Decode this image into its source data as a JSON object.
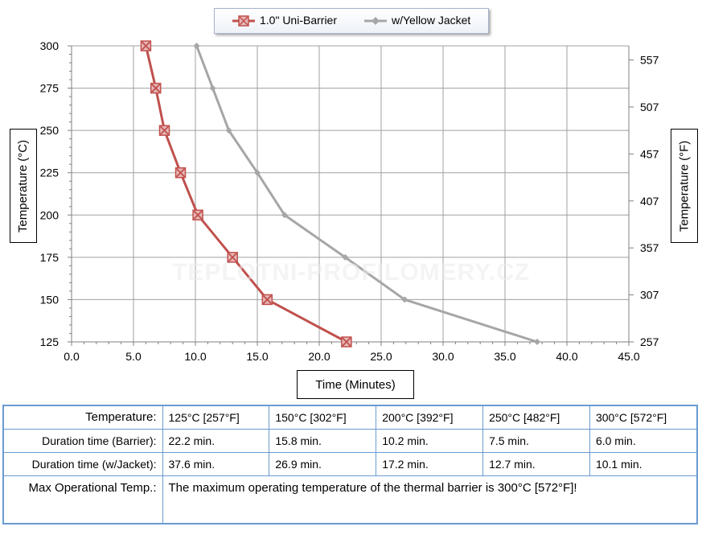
{
  "chart_data": {
    "type": "line",
    "xlabel": "Time (Minutes)",
    "ylabel": "Temperature (°C)",
    "y2label": "Temperature (°F)",
    "xlim": [
      0,
      45
    ],
    "ylim": [
      125,
      300
    ],
    "xticks": [
      "0.0",
      "5.0",
      "10.0",
      "15.0",
      "20.0",
      "25.0",
      "30.0",
      "35.0",
      "40.0",
      "45.0"
    ],
    "yticks": [
      "125",
      "150",
      "175",
      "200",
      "225",
      "250",
      "275",
      "300"
    ],
    "y2ticks": [
      "257",
      "307",
      "357",
      "407",
      "457",
      "507",
      "557"
    ],
    "grid": true,
    "legend": "top",
    "series": [
      {
        "name": "1.0\" Uni-Barrier",
        "color": "#c0504d",
        "marker": "x-square",
        "points": [
          [
            22.2,
            125
          ],
          [
            15.8,
            150
          ],
          [
            13.0,
            175
          ],
          [
            10.2,
            200
          ],
          [
            8.8,
            225
          ],
          [
            7.5,
            250
          ],
          [
            6.8,
            275
          ],
          [
            6.0,
            300
          ]
        ]
      },
      {
        "name": "w/Yellow Jacket",
        "color": "#a6a6a6",
        "marker": "diamond",
        "points": [
          [
            37.6,
            125
          ],
          [
            26.9,
            150
          ],
          [
            22.1,
            175
          ],
          [
            17.2,
            200
          ],
          [
            15.0,
            225
          ],
          [
            12.7,
            250
          ],
          [
            11.4,
            275
          ],
          [
            10.1,
            300
          ]
        ]
      }
    ]
  },
  "watermark": "TEPLOTNI-PROFILOMERY.CZ",
  "table": {
    "temp_label": "Temperature:",
    "temps": [
      "125°C [257°F]",
      "150°C [302°F]",
      "200°C [392°F]",
      "250°C [482°F]",
      "300°C [572°F]"
    ],
    "barrier_label": "Duration time (Barrier):",
    "barrier": [
      "22.2 min.",
      "15.8 min.",
      "10.2 min.",
      "7.5 min.",
      "6.0 min."
    ],
    "jacket_label": "Duration time (w/Jacket):",
    "jacket": [
      "37.6 min.",
      "26.9 min.",
      "17.2 min.",
      "12.7 min.",
      "10.1 min."
    ],
    "max_label": "Max Operational Temp.:",
    "max_text": "The maximum operating temperature of the thermal barrier is 300°C [572°F]!"
  }
}
